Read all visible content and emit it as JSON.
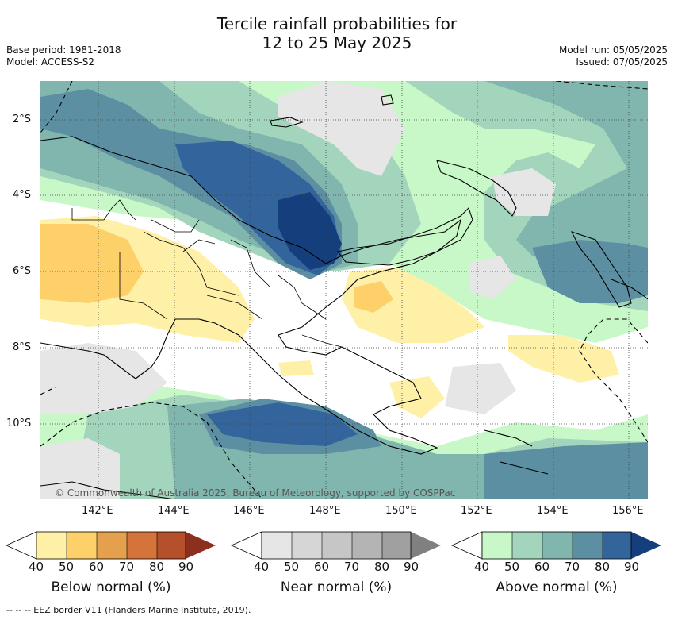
{
  "title_line1": "Tercile rainfall probabilities for",
  "title_line2": "12 to 25 May 2025",
  "base_period": "Base period: 1981-2018",
  "model": "Model: ACCESS-S2",
  "model_run": "Model run: 05/05/2025",
  "issued": "Issued: 07/05/2025",
  "copyright": "© Commonwealth of Australia 2025, Bureau of Meteorology, supported by COSPPac",
  "lat_ticks": [
    "2°S",
    "4°S",
    "6°S",
    "8°S",
    "10°S"
  ],
  "lon_ticks": [
    "142°E",
    "144°E",
    "146°E",
    "148°E",
    "150°E",
    "152°E",
    "154°E",
    "156°E"
  ],
  "colorbars": [
    {
      "label": "Below normal (%)",
      "ticks": [
        "40",
        "50",
        "60",
        "70",
        "80",
        "90"
      ],
      "colors": [
        "#fff0a8",
        "#fdd06a",
        "#e5a04e",
        "#d4733a",
        "#b5512a",
        "#8c2f1e"
      ]
    },
    {
      "label": "Near normal (%)",
      "ticks": [
        "40",
        "50",
        "60",
        "70",
        "80",
        "90"
      ],
      "colors": [
        "#e6e6e6",
        "#d6d6d6",
        "#c6c6c6",
        "#b4b4b4",
        "#a0a0a0",
        "#808080"
      ]
    },
    {
      "label": "Above normal (%)",
      "ticks": [
        "40",
        "50",
        "60",
        "70",
        "80",
        "90"
      ],
      "colors": [
        "#c8f7c8",
        "#a3d5bd",
        "#80b6ad",
        "#5d8fa3",
        "#33649b",
        "#153f7c"
      ]
    }
  ],
  "footer": "--  --  -- EEZ border V11 (Flanders Marine Institute, 2019)."
}
